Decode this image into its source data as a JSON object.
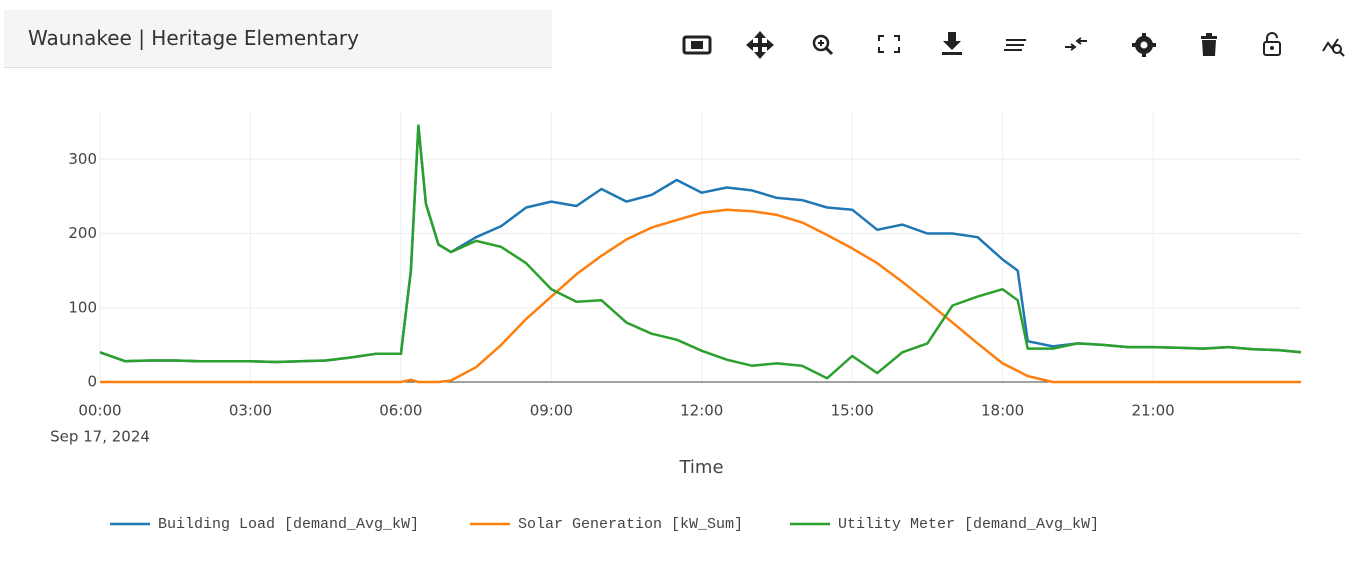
{
  "header": {
    "title": "Waunakee | Heritage Elementary"
  },
  "chart_data": {
    "type": "line",
    "x_label": "Time",
    "x_date_label": "Sep 17, 2024",
    "x": [
      0,
      0.5,
      1,
      1.5,
      2,
      2.5,
      3,
      3.5,
      4,
      4.5,
      5,
      5.5,
      6,
      6.2,
      6.35,
      6.5,
      6.75,
      7,
      7.5,
      8,
      8.5,
      9,
      9.5,
      10,
      10.5,
      11,
      11.5,
      12,
      12.5,
      13,
      13.5,
      14,
      14.5,
      15,
      15.5,
      16,
      16.5,
      17,
      17.5,
      18,
      18.3,
      18.5,
      19,
      19.5,
      20,
      20.5,
      21,
      21.5,
      22,
      22.5,
      23,
      23.5,
      23.95
    ],
    "series": [
      {
        "name": "Building Load [demand_Avg_kW]",
        "color": "#1f77b4",
        "values": [
          40,
          28,
          29,
          29,
          28,
          28,
          28,
          27,
          28,
          29,
          33,
          38,
          38,
          150,
          345,
          240,
          185,
          175,
          195,
          210,
          235,
          243,
          237,
          260,
          243,
          252,
          272,
          255,
          262,
          258,
          248,
          245,
          235,
          232,
          205,
          212,
          200,
          200,
          195,
          165,
          150,
          55,
          48,
          52,
          50,
          47,
          47,
          46,
          45,
          47,
          44,
          43,
          40
        ]
      },
      {
        "name": "Solar Generation [kW_Sum]",
        "color": "#ff7f0e",
        "values": [
          0,
          0,
          0,
          0,
          0,
          0,
          0,
          0,
          0,
          0,
          0,
          0,
          0,
          3,
          0,
          0,
          0,
          2,
          20,
          50,
          85,
          115,
          145,
          170,
          192,
          208,
          218,
          228,
          232,
          230,
          225,
          215,
          198,
          180,
          160,
          135,
          108,
          80,
          52,
          25,
          15,
          8,
          0,
          0,
          0,
          0,
          0,
          0,
          0,
          0,
          0,
          0,
          0
        ]
      },
      {
        "name": "Utility Meter [demand_Avg_kW]",
        "color": "#2ca02c",
        "values": [
          40,
          28,
          29,
          29,
          28,
          28,
          28,
          27,
          28,
          29,
          33,
          38,
          38,
          150,
          345,
          240,
          185,
          175,
          190,
          182,
          160,
          125,
          108,
          110,
          80,
          65,
          57,
          42,
          30,
          22,
          25,
          22,
          5,
          35,
          12,
          40,
          52,
          103,
          115,
          125,
          110,
          45,
          45,
          52,
          50,
          47,
          47,
          46,
          45,
          47,
          44,
          43,
          40
        ]
      }
    ],
    "xlim": [
      0,
      23.95
    ],
    "xticks": [
      {
        "value": 0,
        "label": "00:00"
      },
      {
        "value": 3,
        "label": "03:00"
      },
      {
        "value": 6,
        "label": "06:00"
      },
      {
        "value": 9,
        "label": "09:00"
      },
      {
        "value": 12,
        "label": "12:00"
      },
      {
        "value": 15,
        "label": "15:00"
      },
      {
        "value": 18,
        "label": "18:00"
      },
      {
        "value": 21,
        "label": "21:00"
      }
    ],
    "ylim": [
      0,
      365
    ],
    "yticks": [
      0,
      100,
      200,
      300
    ],
    "grid": true,
    "legend": "bottom"
  }
}
